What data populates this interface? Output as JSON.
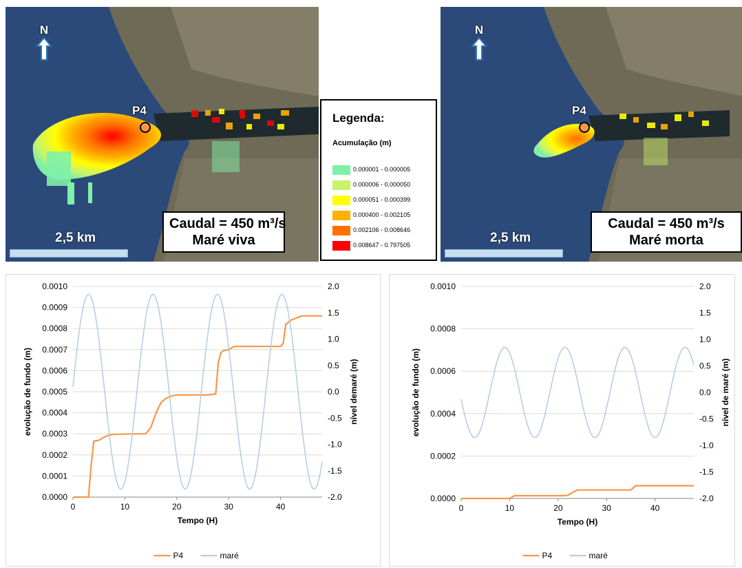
{
  "maps": {
    "left": {
      "north_label": "N",
      "point_label": "P4",
      "caudal_line1": "Caudal = 450 m³/s",
      "caudal_line2": "Maré viva",
      "scale_label": "2,5 km"
    },
    "right": {
      "north_label": "N",
      "point_label": "P4",
      "caudal_line1": "Caudal = 450 m³/s",
      "caudal_line2": "Maré morta",
      "scale_label": "2,5 km"
    }
  },
  "legend": {
    "title": "Legenda:",
    "subtitle": "Acumulação (m)",
    "items": [
      {
        "label": "0.000001 - 0.000005",
        "color": "#7ff0a8"
      },
      {
        "label": "0.000006 - 0.000050",
        "color": "#c8f36a"
      },
      {
        "label": "0.000051 - 0.000399",
        "color": "#ffff00"
      },
      {
        "label": "0.000400 - 0.002105",
        "color": "#ffb000"
      },
      {
        "label": "0.002106 - 0.008646",
        "color": "#ff7000"
      },
      {
        "label": "0.008647 - 0.797505",
        "color": "#ff0000"
      }
    ]
  },
  "chart_data": [
    {
      "type": "line",
      "xlabel": "Tempo (H)",
      "ylabel": "evolução de fundo (m)",
      "y2label": "nível demaré (m)",
      "xlim": [
        0,
        48
      ],
      "xticks": [
        0,
        10,
        20,
        30,
        40
      ],
      "ylim": [
        0,
        0.001
      ],
      "yticks": [
        "0.0000",
        "0.0001",
        "0.0002",
        "0.0003",
        "0.0004",
        "0.0005",
        "0.0006",
        "0.0007",
        "0.0008",
        "0.0009",
        "0.0010"
      ],
      "y2lim": [
        -2.0,
        2.0
      ],
      "y2ticks": [
        "2.0",
        "1.5",
        "1.0",
        "0.5",
        "0.0",
        "-0.5",
        "-1.0",
        "-1.5",
        "-2.0"
      ],
      "legend_position": "bottom",
      "series": [
        {
          "name": "P4",
          "axis": "left",
          "color": "#f79646",
          "x": [
            0,
            3,
            3.5,
            4,
            5,
            6,
            7,
            8,
            12,
            14,
            15,
            16,
            17,
            18,
            19,
            20,
            22,
            26,
            27.5,
            28,
            28.5,
            29,
            30,
            31,
            35,
            40,
            40.5,
            41,
            42,
            43,
            44,
            45,
            46,
            48
          ],
          "y": [
            0,
            0,
            0.00015,
            0.000265,
            0.00027,
            0.000285,
            0.000295,
            0.000298,
            0.0003,
            0.0003,
            0.00033,
            0.0004,
            0.00045,
            0.00047,
            0.00048,
            0.000485,
            0.000485,
            0.000485,
            0.00049,
            0.00064,
            0.000685,
            0.000695,
            0.0007,
            0.000715,
            0.000715,
            0.000715,
            0.00073,
            0.00082,
            0.00084,
            0.00085,
            0.00086,
            0.00086,
            0.00086,
            0.00086
          ]
        },
        {
          "name": "maré",
          "axis": "right",
          "color": "#b7cde6",
          "amplitude": 1.85,
          "mean": 0.0,
          "period": 12.42,
          "phase_hour": 3.0
        }
      ]
    },
    {
      "type": "line",
      "xlabel": "Tempo (H)",
      "ylabel": "evolução de fundo (m)",
      "y2label": "nível de maré (m)",
      "xlim": [
        0,
        48
      ],
      "xticks": [
        0,
        10,
        20,
        30,
        40
      ],
      "ylim": [
        0,
        0.001
      ],
      "yticks": [
        "0.0000",
        "0.0002",
        "0.0004",
        "0.0006",
        "0.0008",
        "0.0010"
      ],
      "y2lim": [
        -2.0,
        2.0
      ],
      "y2ticks": [
        "2.0",
        "1.5",
        "1.0",
        "0.5",
        "0.0",
        "-0.5",
        "-1.0",
        "-1.5",
        "-2.0"
      ],
      "legend_position": "bottom",
      "series": [
        {
          "name": "P4",
          "axis": "left",
          "color": "#f79646",
          "x": [
            0,
            10,
            11,
            21,
            22,
            23.5,
            24,
            35,
            35.5,
            36,
            48
          ],
          "y": [
            0,
            0,
            1.3e-05,
            1.3e-05,
            1.5e-05,
            3.5e-05,
            4e-05,
            4e-05,
            5e-05,
            6e-05,
            6e-05
          ]
        },
        {
          "name": "maré",
          "axis": "right",
          "color": "#b7cde6",
          "amplitude": 0.85,
          "mean": 0.0,
          "period": 12.4,
          "phase_hour": 9.0
        }
      ]
    }
  ]
}
